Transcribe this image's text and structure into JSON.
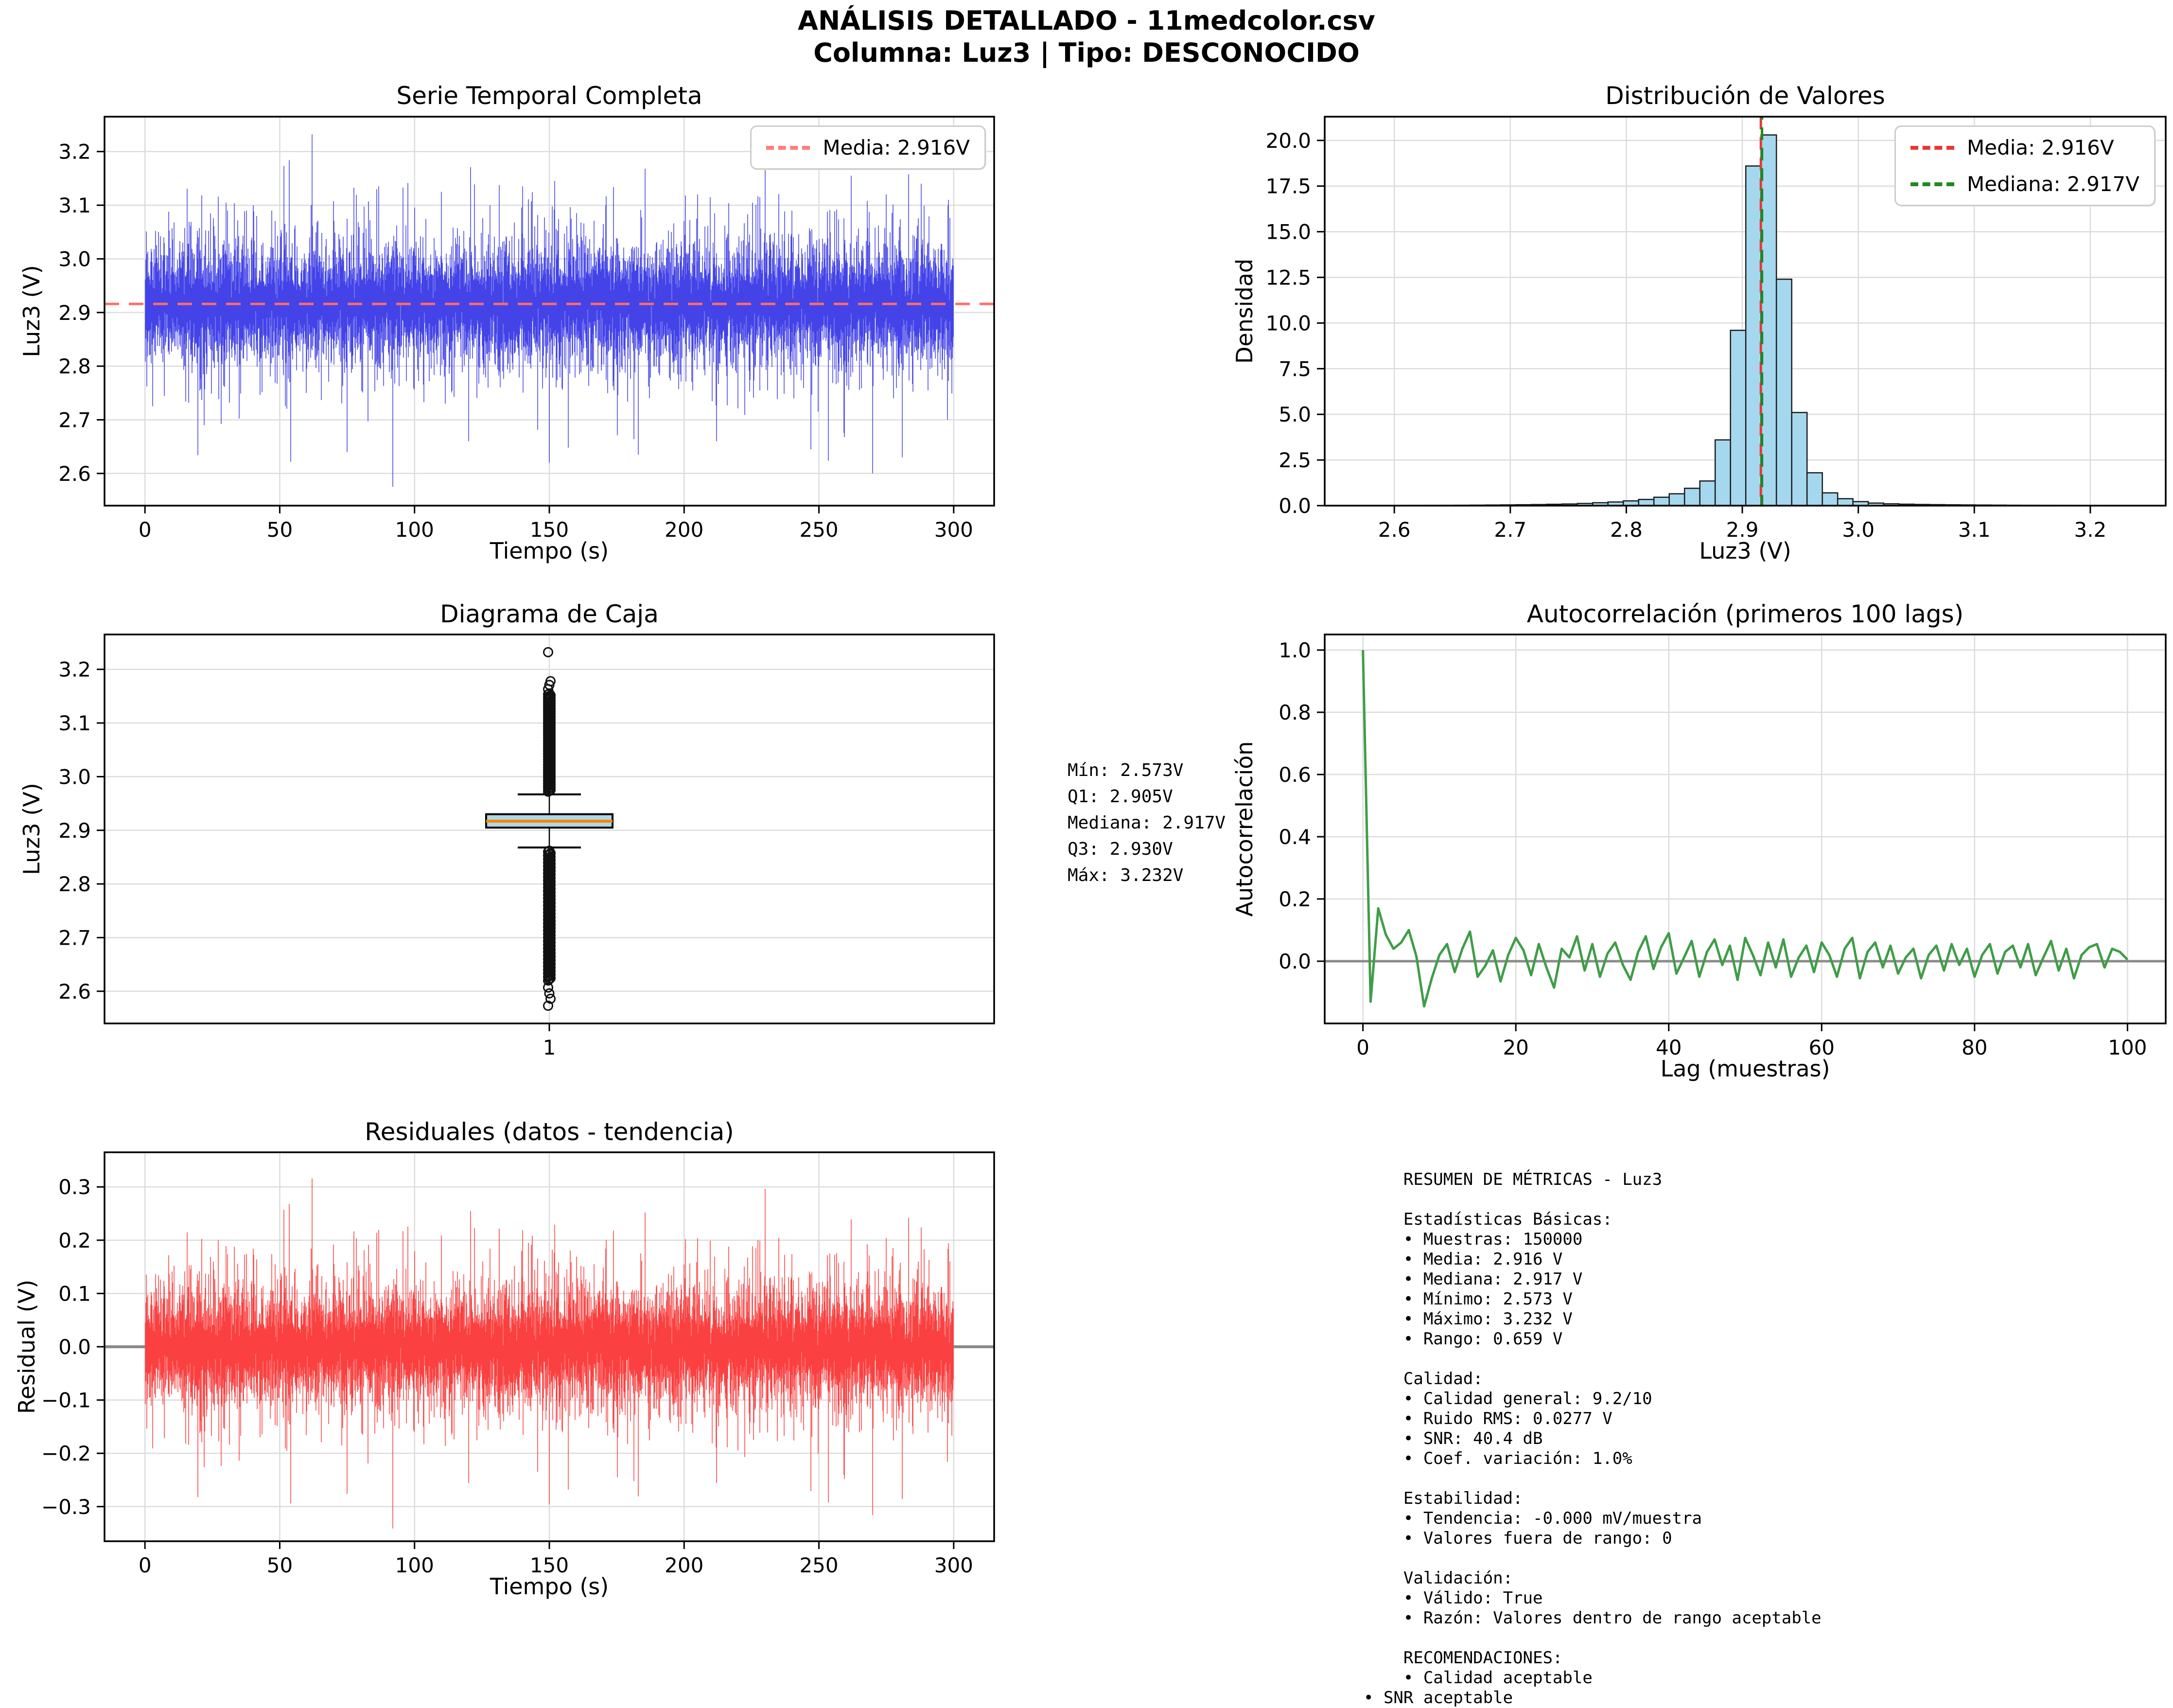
{
  "header": {
    "title": "ANÁLISIS DETALLADO - 11medcolor.csv",
    "subtitle": "Columna: Luz3 | Tipo: DESCONOCIDO"
  },
  "colors": {
    "series_blue": "#4343e8",
    "mean_red": "#ff6b6b",
    "median_green": "#1e8a1e",
    "hist_fill": "#a5d8ee",
    "box_fill": "#add8e6",
    "box_median_orange": "#ff8400",
    "acf_green": "#3f9d47",
    "residual_red": "#fa4040",
    "zero_gray": "#8a8a8a",
    "grid": "#dcdcdc"
  },
  "chart_data": [
    {
      "id": "timeseries",
      "type": "line-noise",
      "title": "Serie Temporal Completa",
      "xlabel": "Tiempo (s)",
      "ylabel": "Luz3 (V)",
      "xlim": [
        -15,
        315
      ],
      "ylim": [
        2.54,
        3.265
      ],
      "xticks": [
        {
          "v": 0,
          "l": "0"
        },
        {
          "v": 50,
          "l": "50"
        },
        {
          "v": 100,
          "l": "100"
        },
        {
          "v": 150,
          "l": "150"
        },
        {
          "v": 200,
          "l": "200"
        },
        {
          "v": 250,
          "l": "250"
        },
        {
          "v": 300,
          "l": "300"
        }
      ],
      "yticks": [
        {
          "v": 2.6,
          "l": "2.6"
        },
        {
          "v": 2.7,
          "l": "2.7"
        },
        {
          "v": 2.8,
          "l": "2.8"
        },
        {
          "v": 2.9,
          "l": "2.9"
        },
        {
          "v": 3.0,
          "l": "3.0"
        },
        {
          "v": 3.1,
          "l": "3.1"
        },
        {
          "v": 3.2,
          "l": "3.2"
        }
      ],
      "line_color": "#4343e8",
      "mean_line": {
        "y": 2.916,
        "color": "#ff6b6b"
      },
      "legend": [
        {
          "label": "Media: 2.916V",
          "color": "#ff7d7d"
        }
      ],
      "summary": {
        "n_samples": 150000,
        "mean": 2.916,
        "min": 2.573,
        "max": 3.232,
        "duration_s": 300
      },
      "synth": {
        "seed": 777,
        "k": 12,
        "base": 2.916,
        "scale": 0.032,
        "clamp": [
          2.573,
          3.232
        ],
        "x0": 0,
        "x1": 300,
        "subtract": 0,
        "spikes": [
          {
            "x": 62,
            "v": 3.232
          },
          {
            "x": 30,
            "v": 3.105
          },
          {
            "x": 47,
            "v": 3.09
          },
          {
            "x": 86,
            "v": 3.13
          },
          {
            "x": 110,
            "v": 3.125
          },
          {
            "x": 128,
            "v": 3.1
          },
          {
            "x": 140,
            "v": 3.135
          },
          {
            "x": 152,
            "v": 3.145
          },
          {
            "x": 171,
            "v": 3.1
          },
          {
            "x": 205,
            "v": 3.12
          },
          {
            "x": 228,
            "v": 3.115
          },
          {
            "x": 240,
            "v": 3.09
          },
          {
            "x": 262,
            "v": 3.155
          },
          {
            "x": 275,
            "v": 3.12
          },
          {
            "x": 288,
            "v": 3.14
          },
          {
            "x": 298,
            "v": 3.11
          },
          {
            "x": 92,
            "v": 2.575
          },
          {
            "x": 150,
            "v": 2.62
          },
          {
            "x": 157,
            "v": 2.648
          },
          {
            "x": 183,
            "v": 2.635
          },
          {
            "x": 212,
            "v": 2.66
          },
          {
            "x": 247,
            "v": 2.645
          },
          {
            "x": 270,
            "v": 2.6
          },
          {
            "x": 281,
            "v": 2.63
          },
          {
            "x": 22,
            "v": 2.69
          },
          {
            "x": 75,
            "v": 2.64
          },
          {
            "x": 120,
            "v": 2.66
          }
        ]
      }
    },
    {
      "id": "histogram",
      "type": "hist",
      "title": "Distribución de Valores",
      "xlabel": "Luz3 (V)",
      "ylabel": "Densidad",
      "xlim": [
        2.54,
        3.265
      ],
      "ylim": [
        0,
        21.3
      ],
      "xticks": [
        {
          "v": 2.6,
          "l": "2.6"
        },
        {
          "v": 2.7,
          "l": "2.7"
        },
        {
          "v": 2.8,
          "l": "2.8"
        },
        {
          "v": 2.9,
          "l": "2.9"
        },
        {
          "v": 3.0,
          "l": "3.0"
        },
        {
          "v": 3.1,
          "l": "3.1"
        },
        {
          "v": 3.2,
          "l": "3.2"
        }
      ],
      "yticks": [
        {
          "v": 0,
          "l": "0.0"
        },
        {
          "v": 2.5,
          "l": "2.5"
        },
        {
          "v": 5,
          "l": "5.0"
        },
        {
          "v": 7.5,
          "l": "7.5"
        },
        {
          "v": 10,
          "l": "10.0"
        },
        {
          "v": 12.5,
          "l": "12.5"
        },
        {
          "v": 15,
          "l": "15.0"
        },
        {
          "v": 17.5,
          "l": "17.5"
        },
        {
          "v": 20,
          "l": "20.0"
        }
      ],
      "bar_fill": "#a5d8ee",
      "bar_edge": "#1b1b1b",
      "bin_start": 2.573,
      "bin_width": 0.0132,
      "densities": [
        0.008,
        0.008,
        0.01,
        0.012,
        0.015,
        0.018,
        0.022,
        0.027,
        0.033,
        0.04,
        0.05,
        0.06,
        0.075,
        0.09,
        0.12,
        0.16,
        0.2,
        0.26,
        0.34,
        0.46,
        0.65,
        0.95,
        1.35,
        3.6,
        9.6,
        18.6,
        20.3,
        12.4,
        5.1,
        1.8,
        0.7,
        0.38,
        0.22,
        0.14,
        0.1,
        0.08,
        0.065,
        0.055,
        0.045,
        0.038,
        0.032,
        0.027,
        0.022,
        0.018,
        0.015,
        0.012,
        0.01,
        0.008,
        0.006,
        0.005
      ],
      "vlines": [
        {
          "x": 2.916,
          "color": "#e53935",
          "name": "media-line"
        },
        {
          "x": 2.917,
          "color": "#1e8a1e",
          "name": "mediana-line"
        }
      ],
      "legend": [
        {
          "label": "Media: 2.916V",
          "color": "#e53935"
        },
        {
          "label": "Mediana: 2.917V",
          "color": "#1e8a1e"
        }
      ]
    },
    {
      "id": "boxplot",
      "type": "box",
      "title": "Diagrama de Caja",
      "xlabel": "",
      "ylabel": "Luz3 (V)",
      "xlim": [
        0.5,
        1.5
      ],
      "ylim": [
        2.54,
        3.265
      ],
      "xticks": [
        {
          "v": 1,
          "l": "1"
        }
      ],
      "yticks": [
        {
          "v": 2.6,
          "l": "2.6"
        },
        {
          "v": 2.7,
          "l": "2.7"
        },
        {
          "v": 2.8,
          "l": "2.8"
        },
        {
          "v": 2.9,
          "l": "2.9"
        },
        {
          "v": 3.0,
          "l": "3.0"
        },
        {
          "v": 3.1,
          "l": "3.1"
        },
        {
          "v": 3.2,
          "l": "3.2"
        }
      ],
      "q1": 2.905,
      "median": 2.917,
      "q3": 2.93,
      "whisker_low": 2.868,
      "whisker_high": 2.967,
      "box_fill": "#add8e6",
      "median_color": "#ff8400",
      "outliers_top": {
        "dense_from": 2.972,
        "dense_to": 3.155,
        "count": 110,
        "singles": [
          3.163,
          3.171,
          3.178,
          3.232
        ]
      },
      "outliers_bottom": {
        "dense_from": 2.62,
        "dense_to": 2.862,
        "count": 110,
        "singles": [
          2.607,
          2.596,
          2.586,
          2.573
        ]
      }
    },
    {
      "id": "autocorr",
      "type": "acf",
      "title": "Autocorrelación (primeros 100 lags)",
      "xlabel": "Lag (muestras)",
      "ylabel": "Autocorrelación",
      "xlim": [
        -5,
        105
      ],
      "ylim": [
        -0.2,
        1.05
      ],
      "xticks": [
        {
          "v": 0,
          "l": "0"
        },
        {
          "v": 20,
          "l": "20"
        },
        {
          "v": 40,
          "l": "40"
        },
        {
          "v": 60,
          "l": "60"
        },
        {
          "v": 80,
          "l": "80"
        },
        {
          "v": 100,
          "l": "100"
        }
      ],
      "yticks": [
        {
          "v": 0,
          "l": "0.0"
        },
        {
          "v": 0.2,
          "l": "0.2"
        },
        {
          "v": 0.4,
          "l": "0.4"
        },
        {
          "v": 0.6,
          "l": "0.6"
        },
        {
          "v": 0.8,
          "l": "0.8"
        },
        {
          "v": 1.0,
          "l": "1.0"
        }
      ],
      "line_color": "#3f9d47",
      "zero_line": {
        "y": 0,
        "color": "#8a8a8a"
      },
      "values": [
        1.0,
        -0.13,
        0.17,
        0.085,
        0.04,
        0.06,
        0.1,
        0.015,
        -0.145,
        -0.055,
        0.02,
        0.055,
        -0.035,
        0.04,
        0.095,
        -0.05,
        -0.015,
        0.035,
        -0.065,
        0.02,
        0.075,
        0.035,
        -0.045,
        0.055,
        -0.02,
        -0.085,
        0.04,
        0.012,
        0.08,
        -0.03,
        0.055,
        -0.05,
        0.025,
        0.06,
        -0.012,
        -0.06,
        0.03,
        0.08,
        -0.025,
        0.045,
        0.09,
        -0.04,
        0.012,
        0.065,
        -0.05,
        0.03,
        0.07,
        -0.012,
        0.05,
        -0.06,
        0.075,
        0.02,
        -0.045,
        0.06,
        -0.02,
        0.07,
        -0.05,
        0.012,
        0.05,
        -0.035,
        0.06,
        0.02,
        -0.05,
        0.04,
        0.075,
        -0.055,
        0.03,
        0.06,
        -0.02,
        0.05,
        -0.04,
        0.012,
        0.04,
        -0.055,
        0.02,
        0.05,
        -0.03,
        0.055,
        -0.012,
        0.04,
        -0.05,
        0.02,
        0.055,
        -0.04,
        0.03,
        0.05,
        -0.02,
        0.055,
        -0.045,
        0.012,
        0.065,
        -0.03,
        0.04,
        -0.055,
        0.02,
        0.045,
        0.055,
        -0.02,
        0.04,
        0.03,
        0.005
      ]
    },
    {
      "id": "residuals",
      "type": "line-noise",
      "title": "Residuales (datos - tendencia)",
      "xlabel": "Tiempo (s)",
      "ylabel": "Residual (V)",
      "xlim": [
        -15,
        315
      ],
      "ylim": [
        -0.365,
        0.365
      ],
      "xticks": [
        {
          "v": 0,
          "l": "0"
        },
        {
          "v": 50,
          "l": "50"
        },
        {
          "v": 100,
          "l": "100"
        },
        {
          "v": 150,
          "l": "150"
        },
        {
          "v": 200,
          "l": "200"
        },
        {
          "v": 250,
          "l": "250"
        },
        {
          "v": 300,
          "l": "300"
        }
      ],
      "yticks": [
        {
          "v": -0.3,
          "l": "−0.3"
        },
        {
          "v": -0.2,
          "l": "−0.2"
        },
        {
          "v": -0.1,
          "l": "−0.1"
        },
        {
          "v": 0,
          "l": "0.0"
        },
        {
          "v": 0.1,
          "l": "0.1"
        },
        {
          "v": 0.2,
          "l": "0.2"
        },
        {
          "v": 0.3,
          "l": "0.3"
        }
      ],
      "line_color": "#fa4040",
      "zero_line": {
        "y": 0,
        "color": "#8a8a8a"
      },
      "summary": {
        "mean": 0.0,
        "rms": 0.0277,
        "min": -0.343,
        "max": 0.316
      },
      "synth": {
        "seed": 777,
        "k": 12,
        "base": 2.916,
        "scale": 0.032,
        "clamp": [
          2.573,
          3.232
        ],
        "x0": 0,
        "x1": 300,
        "subtract": 2.916,
        "spikes": [
          {
            "x": 62,
            "v": 3.232
          },
          {
            "x": 30,
            "v": 3.105
          },
          {
            "x": 47,
            "v": 3.09
          },
          {
            "x": 86,
            "v": 3.13
          },
          {
            "x": 110,
            "v": 3.125
          },
          {
            "x": 128,
            "v": 3.1
          },
          {
            "x": 140,
            "v": 3.135
          },
          {
            "x": 152,
            "v": 3.145
          },
          {
            "x": 171,
            "v": 3.1
          },
          {
            "x": 205,
            "v": 3.12
          },
          {
            "x": 228,
            "v": 3.115
          },
          {
            "x": 240,
            "v": 3.09
          },
          {
            "x": 262,
            "v": 3.155
          },
          {
            "x": 275,
            "v": 3.12
          },
          {
            "x": 288,
            "v": 3.14
          },
          {
            "x": 298,
            "v": 3.11
          },
          {
            "x": 92,
            "v": 2.575
          },
          {
            "x": 150,
            "v": 2.62
          },
          {
            "x": 157,
            "v": 2.648
          },
          {
            "x": 183,
            "v": 2.635
          },
          {
            "x": 212,
            "v": 2.66
          },
          {
            "x": 247,
            "v": 2.645
          },
          {
            "x": 270,
            "v": 2.6
          },
          {
            "x": 281,
            "v": 2.63
          },
          {
            "x": 22,
            "v": 2.69
          },
          {
            "x": 75,
            "v": 2.64
          },
          {
            "x": 120,
            "v": 2.66
          }
        ]
      }
    }
  ],
  "annotations": {
    "box_stats": [
      "Mín: 2.573V",
      "Q1: 2.905V",
      "Mediana: 2.917V",
      "Q3: 2.930V",
      "Máx: 3.232V"
    ],
    "metrics": [
      "    RESUMEN DE MÉTRICAS - Luz3",
      "",
      "    Estadísticas Básicas:",
      "    • Muestras: 150000",
      "    • Media: 2.916 V",
      "    • Mediana: 2.917 V",
      "    • Mínimo: 2.573 V",
      "    • Máximo: 3.232 V",
      "    • Rango: 0.659 V",
      "",
      "    Calidad:",
      "    • Calidad general: 9.2/10",
      "    • Ruido RMS: 0.0277 V",
      "    • SNR: 40.4 dB",
      "    • Coef. variación: 1.0%",
      "",
      "    Estabilidad:",
      "    • Tendencia: -0.000 mV/muestra",
      "    • Valores fuera de rango: 0",
      "",
      "    Validación:",
      "    • Válido: True",
      "    • Razón: Valores dentro de rango aceptable",
      "",
      "    RECOMENDACIONES:",
      "    • Calidad aceptable",
      "• SNR aceptable"
    ]
  }
}
